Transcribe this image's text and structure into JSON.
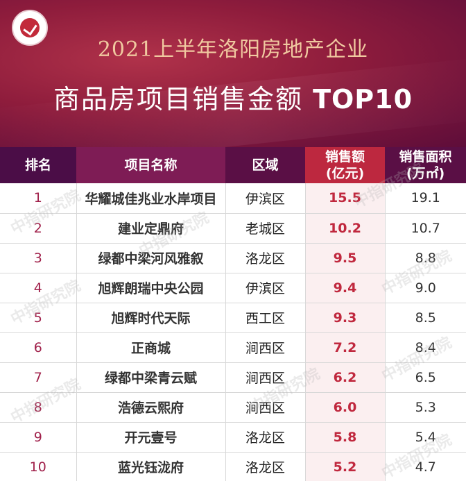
{
  "header": {
    "title_line1": "2021上半年洛阳房地产企业",
    "title_line2": "商品房项目销售金额",
    "title_top": "TOP10"
  },
  "table": {
    "headers": {
      "rank": "排名",
      "project": "项目名称",
      "district": "区域",
      "amount_line1": "销售额",
      "amount_line2": "(亿元)",
      "area_line1": "销售面积",
      "area_line2": "(万㎡)"
    },
    "rows": [
      {
        "rank": "1",
        "project": "华耀城佳兆业水岸项目",
        "district": "伊滨区",
        "amount": "15.5",
        "area": "19.1"
      },
      {
        "rank": "2",
        "project": "建业定鼎府",
        "district": "老城区",
        "amount": "10.2",
        "area": "10.7"
      },
      {
        "rank": "3",
        "project": "绿都中梁河风雅叙",
        "district": "洛龙区",
        "amount": "9.5",
        "area": "8.8"
      },
      {
        "rank": "4",
        "project": "旭辉朗瑞中央公园",
        "district": "伊滨区",
        "amount": "9.4",
        "area": "9.0"
      },
      {
        "rank": "5",
        "project": "旭辉时代天际",
        "district": "西工区",
        "amount": "9.3",
        "area": "8.5"
      },
      {
        "rank": "6",
        "project": "正商城",
        "district": "涧西区",
        "amount": "7.2",
        "area": "8.4"
      },
      {
        "rank": "7",
        "project": "绿都中梁青云赋",
        "district": "涧西区",
        "amount": "6.2",
        "area": "6.5"
      },
      {
        "rank": "8",
        "project": "浩德云熙府",
        "district": "涧西区",
        "amount": "6.0",
        "area": "5.3"
      },
      {
        "rank": "9",
        "project": "开元壹号",
        "district": "洛龙区",
        "amount": "5.8",
        "area": "5.4"
      },
      {
        "rank": "10",
        "project": "蓝光钰泷府",
        "district": "洛龙区",
        "amount": "5.2",
        "area": "4.7"
      }
    ]
  },
  "watermark": "中指研究院",
  "colors": {
    "banner_dark": "#5e0d3a",
    "banner_red": "#8e1c3c",
    "title_gold": "#f0c9a0",
    "header_amount": "#bd283f",
    "amount_text": "#c0283e"
  }
}
